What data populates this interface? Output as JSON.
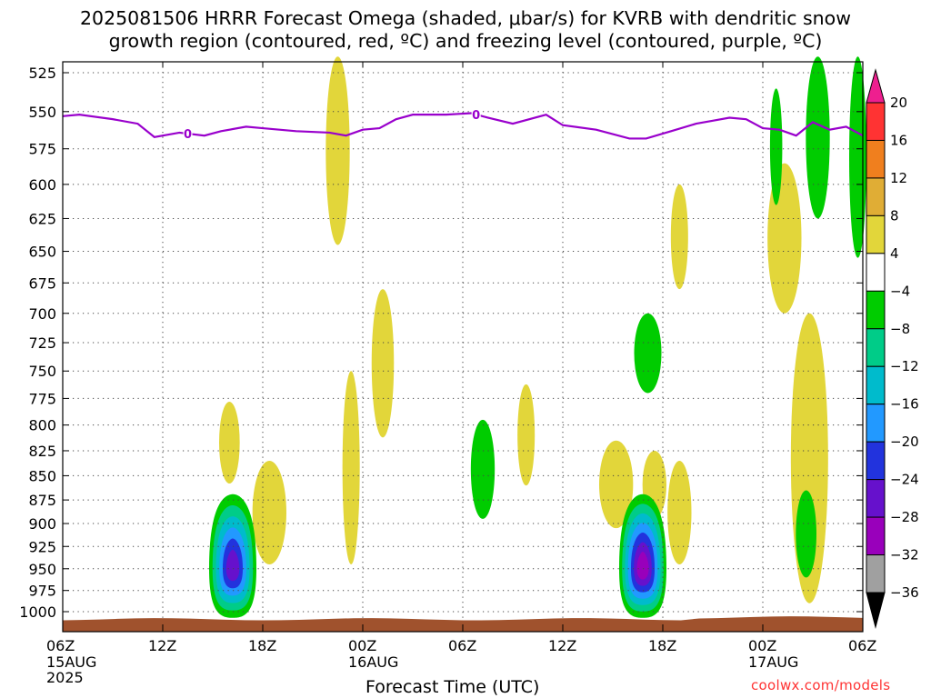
{
  "title": "2025081506 HRRR Forecast Omega (shaded, μbar/s) for KVRB with dendritic snow\ngrowth region (contoured, red, ºC) and freezing level (contoured, purple, ºC)",
  "credit": "coolwx.com/models",
  "chart_data": {
    "type": "heatmap",
    "title": "2025081506 HRRR Forecast Omega (shaded, μbar/s) for KVRB with dendritic snow growth region (contoured, red, ºC) and freezing level (contoured, purple, ºC)",
    "xlabel": "Forecast Time (UTC)",
    "ylabel": "",
    "xlim_hours": [
      0,
      48
    ],
    "ylim": [
      1013,
      515
    ],
    "y_scale": "log-pressure",
    "grid": true,
    "x_ticks": [
      {
        "h": 0,
        "label": "06Z",
        "sub": [
          "15AUG",
          "2025"
        ]
      },
      {
        "h": 6,
        "label": "12Z",
        "sub": []
      },
      {
        "h": 12,
        "label": "18Z",
        "sub": []
      },
      {
        "h": 18,
        "label": "00Z",
        "sub": [
          "16AUG"
        ]
      },
      {
        "h": 24,
        "label": "06Z",
        "sub": []
      },
      {
        "h": 30,
        "label": "12Z",
        "sub": []
      },
      {
        "h": 36,
        "label": "18Z",
        "sub": []
      },
      {
        "h": 42,
        "label": "00Z",
        "sub": [
          "17AUG"
        ]
      },
      {
        "h": 48,
        "label": "06Z",
        "sub": []
      }
    ],
    "y_ticks": [
      525,
      550,
      575,
      600,
      625,
      650,
      675,
      700,
      725,
      750,
      775,
      800,
      825,
      850,
      875,
      900,
      925,
      950,
      975,
      1000
    ],
    "colorbar": {
      "labels": [
        "20",
        "16",
        "12",
        "8",
        "4",
        "−4",
        "−8",
        "−12",
        "−16",
        "−20",
        "−24",
        "−28",
        "−32",
        "−36"
      ],
      "levels": [
        {
          "range": [
            16,
            20
          ],
          "color": "#ff3333"
        },
        {
          "range": [
            12,
            16
          ],
          "color": "#f07f1e"
        },
        {
          "range": [
            8,
            12
          ],
          "color": "#e0ad35"
        },
        {
          "range": [
            4,
            8
          ],
          "color": "#e2d63a"
        },
        {
          "range": [
            -4,
            4
          ],
          "color": "#ffffff"
        },
        {
          "range": [
            -8,
            -4
          ],
          "color": "#00cc00"
        },
        {
          "range": [
            -12,
            -8
          ],
          "color": "#00cc88"
        },
        {
          "range": [
            -16,
            -12
          ],
          "color": "#00bbcc"
        },
        {
          "range": [
            -20,
            -16
          ],
          "color": "#2299ff"
        },
        {
          "range": [
            -24,
            -20
          ],
          "color": "#2233dd"
        },
        {
          "range": [
            -28,
            -24
          ],
          "color": "#6611cc"
        },
        {
          "range": [
            -32,
            -28
          ],
          "color": "#9900bb"
        },
        {
          "range": [
            -36,
            -32
          ],
          "color": "#a0a0a0"
        }
      ],
      "top_cap_color": "#ee1f8f",
      "bottom_cap_color": "#000000"
    },
    "freezing_level": {
      "color": "#9900cc",
      "label": "0",
      "label_hours": [
        7.5,
        24.8
      ],
      "points": [
        {
          "h": 0,
          "p": 553
        },
        {
          "h": 1,
          "p": 552
        },
        {
          "h": 3,
          "p": 555
        },
        {
          "h": 4.5,
          "p": 558
        },
        {
          "h": 5.5,
          "p": 567
        },
        {
          "h": 7,
          "p": 564
        },
        {
          "h": 8.5,
          "p": 566
        },
        {
          "h": 9.5,
          "p": 563
        },
        {
          "h": 11,
          "p": 560
        },
        {
          "h": 12,
          "p": 561
        },
        {
          "h": 14,
          "p": 563
        },
        {
          "h": 16,
          "p": 564
        },
        {
          "h": 17,
          "p": 566
        },
        {
          "h": 18,
          "p": 562
        },
        {
          "h": 19,
          "p": 561
        },
        {
          "h": 20,
          "p": 555
        },
        {
          "h": 21,
          "p": 552
        },
        {
          "h": 23,
          "p": 552
        },
        {
          "h": 24.5,
          "p": 551
        },
        {
          "h": 25.5,
          "p": 554
        },
        {
          "h": 27,
          "p": 558
        },
        {
          "h": 29,
          "p": 552
        },
        {
          "h": 30,
          "p": 559
        },
        {
          "h": 32,
          "p": 562
        },
        {
          "h": 34,
          "p": 568
        },
        {
          "h": 35,
          "p": 568
        },
        {
          "h": 36.5,
          "p": 563
        },
        {
          "h": 38,
          "p": 558
        },
        {
          "h": 39,
          "p": 556
        },
        {
          "h": 40,
          "p": 554
        },
        {
          "h": 41,
          "p": 555
        },
        {
          "h": 42,
          "p": 561
        },
        {
          "h": 43,
          "p": 562
        },
        {
          "h": 44,
          "p": 566
        },
        {
          "h": 45,
          "p": 557
        },
        {
          "h": 46,
          "p": 562
        },
        {
          "h": 47,
          "p": 560
        },
        {
          "h": 48,
          "p": 566
        }
      ]
    },
    "terrain": {
      "color": "#a0522d",
      "top_p": 1008
    },
    "omega_cells": [
      {
        "h": 16.5,
        "p": 580,
        "w": 1.0,
        "ptop": 515,
        "pbot": 645,
        "level": "4 to 8"
      },
      {
        "h": 19.2,
        "p": 750,
        "w": 0.9,
        "ptop": 680,
        "pbot": 812,
        "level": "4 to 8"
      },
      {
        "h": 17.3,
        "p": 820,
        "w": 0.6,
        "ptop": 750,
        "pbot": 945,
        "level": "4 to 8"
      },
      {
        "h": 10.0,
        "p": 815,
        "w": 0.8,
        "ptop": 778,
        "pbot": 858,
        "level": "4 to 8"
      },
      {
        "h": 12.4,
        "p": 885,
        "w": 1.6,
        "ptop": 835,
        "pbot": 945,
        "level": "4 to 8"
      },
      {
        "h": 27.8,
        "p": 815,
        "w": 0.6,
        "ptop": 762,
        "pbot": 860,
        "level": "4 to 8"
      },
      {
        "h": 33.2,
        "p": 860,
        "w": 1.6,
        "ptop": 815,
        "pbot": 905,
        "level": "4 to 8"
      },
      {
        "h": 35.5,
        "p": 860,
        "w": 1.0,
        "ptop": 825,
        "pbot": 895,
        "level": "4 to 8"
      },
      {
        "h": 37.0,
        "p": 885,
        "w": 1.0,
        "ptop": 835,
        "pbot": 945,
        "level": "4 to 8"
      },
      {
        "h": 37.0,
        "p": 640,
        "w": 0.6,
        "ptop": 600,
        "pbot": 680,
        "level": "4 to 8"
      },
      {
        "h": 43.3,
        "p": 635,
        "w": 1.6,
        "ptop": 585,
        "pbot": 700,
        "level": "4 to 8"
      },
      {
        "h": 44.8,
        "p": 820,
        "w": 1.8,
        "ptop": 700,
        "pbot": 990,
        "level": "4 to 8"
      },
      {
        "h": 25.2,
        "p": 845,
        "w": 1.0,
        "ptop": 795,
        "pbot": 895,
        "level": "-8 to -4"
      },
      {
        "h": 35.1,
        "p": 735,
        "w": 1.2,
        "ptop": 700,
        "pbot": 770,
        "level": "-8 to -4"
      },
      {
        "h": 42.8,
        "p": 570,
        "w": 0.3,
        "ptop": 535,
        "pbot": 615,
        "level": "-8 to -4"
      },
      {
        "h": 44.6,
        "p": 910,
        "w": 0.8,
        "ptop": 865,
        "pbot": 960,
        "level": "-8 to -4"
      },
      {
        "h": 45.3,
        "p": 560,
        "w": 1.0,
        "ptop": 515,
        "pbot": 625,
        "level": "-8 to -4"
      },
      {
        "h": 47.7,
        "p": 580,
        "w": 0.6,
        "ptop": 515,
        "pbot": 655,
        "level": "-8 to -4"
      }
    ],
    "omega_cores": [
      {
        "h": 10.2,
        "p": 950,
        "levels": [
          "-8 to -4",
          "-12 to -8",
          "-16 to -12",
          "-20 to -16",
          "-24 to -20",
          "-28 to -24"
        ],
        "min": -28
      },
      {
        "h": 34.8,
        "p": 950,
        "levels": [
          "-8 to -4",
          "-12 to -8",
          "-16 to -12",
          "-20 to -16",
          "-24 to -20",
          "-28 to -24",
          "-32 to -28"
        ],
        "min": -32
      }
    ]
  }
}
